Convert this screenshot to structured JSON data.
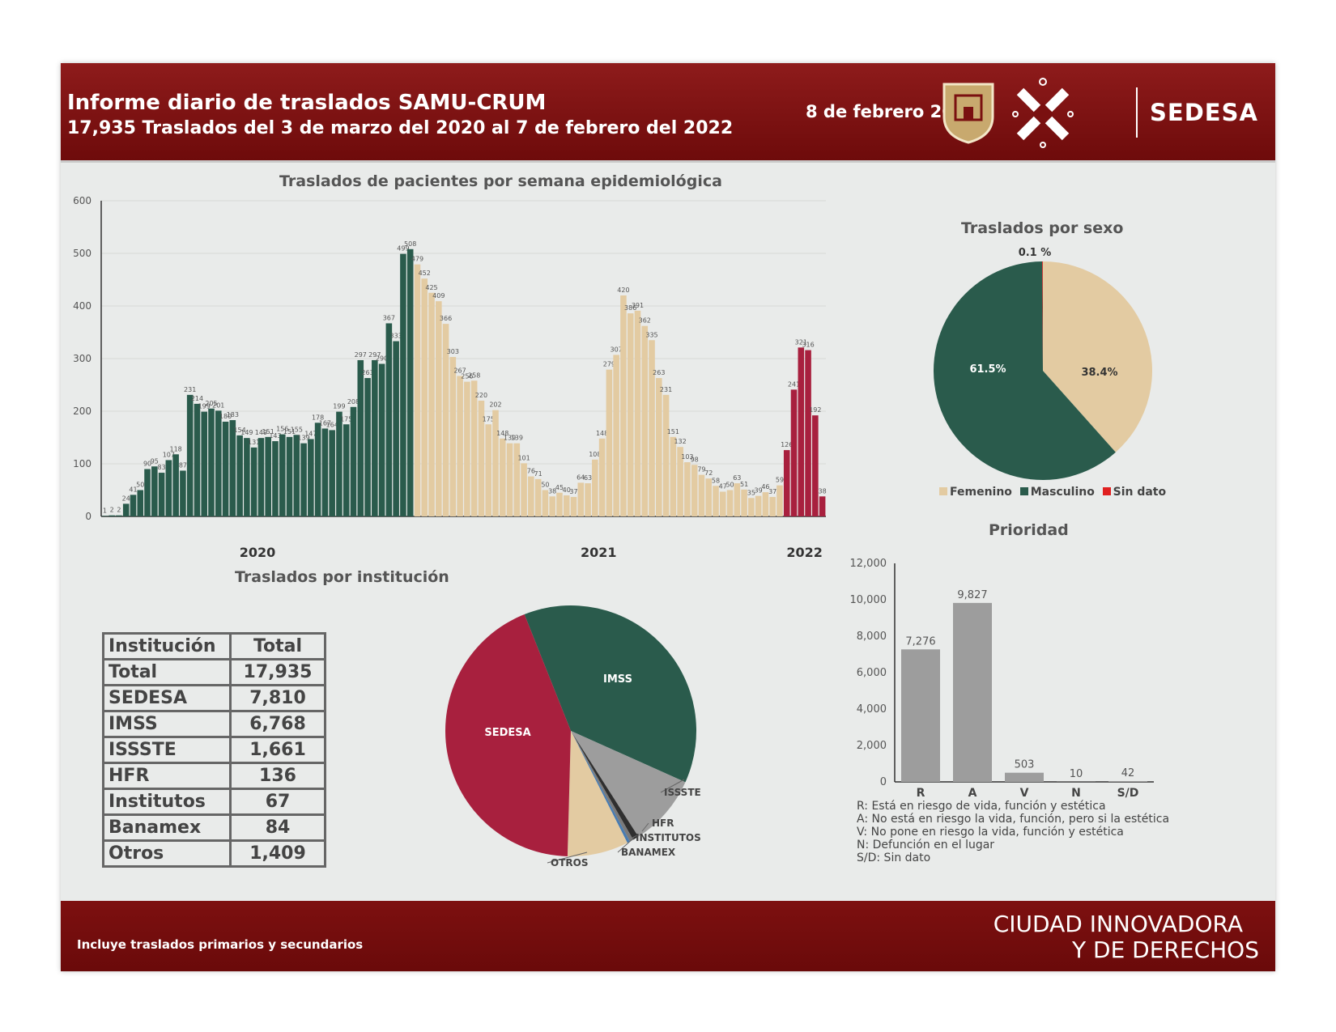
{
  "header": {
    "title": "Informe diario de traslados SAMU-CRUM",
    "subtitle": "17,935 Traslados  del 3 de marzo del 2020 al 7 de febrero del 2022",
    "date": "8 de febrero 2022",
    "brand": "SEDESA"
  },
  "footer": {
    "note": "Incluye traslados primarios y secundarios",
    "slogan_line1": "CIUDAD INNOVADORA",
    "slogan_line2": "Y DE DERECHOS"
  },
  "colors": {
    "green": "#2a5b4c",
    "beige": "#e3cba2",
    "crimson": "#a8203e",
    "gray": "#9d9d9d",
    "red": "#e02020",
    "header": "#7d1010"
  },
  "icons": [
    "cdmx-shield-icon",
    "sedesa-logo-icon"
  ],
  "chart_data": [
    {
      "id": "weekly",
      "type": "bar",
      "title": "Traslados  de pacientes por semana epidemiológica",
      "ylim": [
        0,
        600
      ],
      "yticks": [
        0,
        100,
        200,
        300,
        400,
        500,
        600
      ],
      "year_labels": [
        "2020",
        "2021",
        "2022"
      ],
      "series": [
        {
          "name": "2020",
          "values": [
            1,
            2,
            2,
            24,
            41,
            50,
            90,
            95,
            83,
            107,
            118,
            87,
            231,
            214,
            199,
            205,
            201,
            180,
            183,
            154,
            149,
            131,
            149,
            151,
            143,
            156,
            151,
            155,
            139,
            147,
            178,
            167,
            164,
            199,
            175,
            208,
            297,
            263,
            297,
            290,
            367,
            333,
            499,
            508
          ]
        },
        {
          "name": "2021",
          "values": [
            479,
            452,
            425,
            409,
            366,
            303,
            267,
            256,
            258,
            220,
            175,
            202,
            148,
            139,
            139,
            101,
            76,
            71,
            50,
            38,
            45,
            40,
            37,
            64,
            63,
            108,
            148,
            279,
            307,
            420,
            386,
            391,
            362,
            335,
            263,
            231,
            151,
            132,
            103,
            98,
            79,
            72,
            58,
            47,
            50,
            63,
            51,
            35,
            39,
            46,
            37,
            59
          ]
        },
        {
          "name": "2022",
          "values": [
            126,
            241,
            321,
            316,
            192,
            38
          ]
        }
      ]
    },
    {
      "id": "sexo",
      "type": "pie",
      "title": "Traslados por sexo",
      "labels": [
        "Femenino",
        "Masculino",
        "Sin dato"
      ],
      "values": [
        38.4,
        61.5,
        0.1
      ],
      "value_labels": [
        "38.4%",
        "61.5%",
        "0.1 %"
      ]
    },
    {
      "id": "institucion",
      "type": "pie",
      "title": "Traslados por institución",
      "labels": [
        "SEDESA",
        "IMSS",
        "ISSSTE",
        "HFR",
        "INSTITUTOS",
        "BANAMEX",
        "OTROS"
      ],
      "values": [
        7810,
        6768,
        1661,
        136,
        67,
        84,
        1409
      ]
    },
    {
      "id": "prioridad",
      "type": "bar",
      "title": "Prioridad",
      "categories": [
        "R",
        "A",
        "V",
        "N",
        "S/D"
      ],
      "values": [
        7276,
        9827,
        503,
        10,
        42
      ],
      "value_labels": [
        "7,276",
        "9,827",
        "503",
        "10",
        "42"
      ],
      "ylim": [
        0,
        12000
      ],
      "yticks": [
        "0",
        "2,000",
        "4,000",
        "6,000",
        "8,000",
        "10,000",
        "12,000"
      ],
      "notes": [
        "R: Está en riesgo de vida, función y estética",
        "A: No está en riesgo la vida, función, pero si la estética",
        "V: No pone en riesgo la vida, función y estética",
        "N: Defunción en el lugar",
        "S/D: Sin dato"
      ]
    }
  ],
  "table": {
    "headers": [
      "Institución",
      "Total"
    ],
    "rows": [
      [
        "Total",
        "17,935"
      ],
      [
        "SEDESA",
        "7,810"
      ],
      [
        "IMSS",
        "6,768"
      ],
      [
        "ISSSTE",
        "1,661"
      ],
      [
        "HFR",
        "136"
      ],
      [
        "Institutos",
        "67"
      ],
      [
        "Banamex",
        "84"
      ],
      [
        "Otros",
        "1,409"
      ]
    ]
  }
}
